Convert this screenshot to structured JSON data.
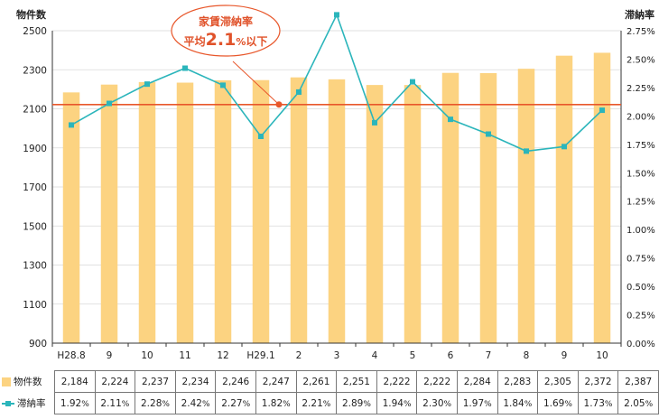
{
  "chart_data": {
    "type": "bar+line",
    "categories": [
      "H28.8",
      "9",
      "10",
      "11",
      "12",
      "H29.1",
      "2",
      "3",
      "4",
      "5",
      "6",
      "7",
      "8",
      "9",
      "10"
    ],
    "series": [
      {
        "name": "物件数",
        "type": "bar",
        "axis": "left",
        "values": [
          2184,
          2224,
          2237,
          2234,
          2246,
          2247,
          2261,
          2251,
          2222,
          2222,
          2284,
          2283,
          2305,
          2372,
          2387
        ],
        "labels": [
          "2,184",
          "2,224",
          "2,237",
          "2,234",
          "2,246",
          "2,247",
          "2,261",
          "2,251",
          "2,222",
          "2,222",
          "2,284",
          "2,283",
          "2,305",
          "2,372",
          "2,387"
        ]
      },
      {
        "name": "滞納率",
        "type": "line",
        "axis": "right",
        "values": [
          1.92,
          2.11,
          2.28,
          2.42,
          2.27,
          1.82,
          2.21,
          2.89,
          1.94,
          2.3,
          1.97,
          1.84,
          1.69,
          1.73,
          2.05
        ],
        "labels": [
          "1.92",
          "2.11",
          "2.28",
          "2.42",
          "2.27",
          "1.82",
          "2.21",
          "2.89",
          "1.94",
          "2.30",
          "1.97",
          "1.84",
          "1.69",
          "1.73",
          "2.05"
        ]
      }
    ],
    "y_left": {
      "title": "物件数",
      "range": [
        900,
        2500
      ],
      "ticks": [
        "900",
        "1100",
        "1300",
        "1500",
        "1700",
        "1900",
        "2100",
        "2300",
        "2500"
      ]
    },
    "y_right": {
      "title": "滞納率",
      "range": [
        0,
        2.75
      ],
      "ticks": [
        "0.00%",
        "0.25%",
        "0.50%",
        "0.75%",
        "1.00%",
        "1.25%",
        "1.50%",
        "1.75%",
        "2.00%",
        "2.25%",
        "2.50%",
        "2.75%"
      ]
    },
    "reference_line": {
      "value": 2.1,
      "axis": "right"
    },
    "callout": {
      "line1": "家賃滞納率",
      "prefix": "平均",
      "value": "2.1",
      "unit": "%",
      "suffix": "以下"
    },
    "colors": {
      "bar": "#fcd381",
      "line": "#2bb5bb",
      "reference": "#e8572b",
      "callout_text": "#e0522a"
    },
    "grid": "horizontal",
    "legend": "table-below"
  }
}
